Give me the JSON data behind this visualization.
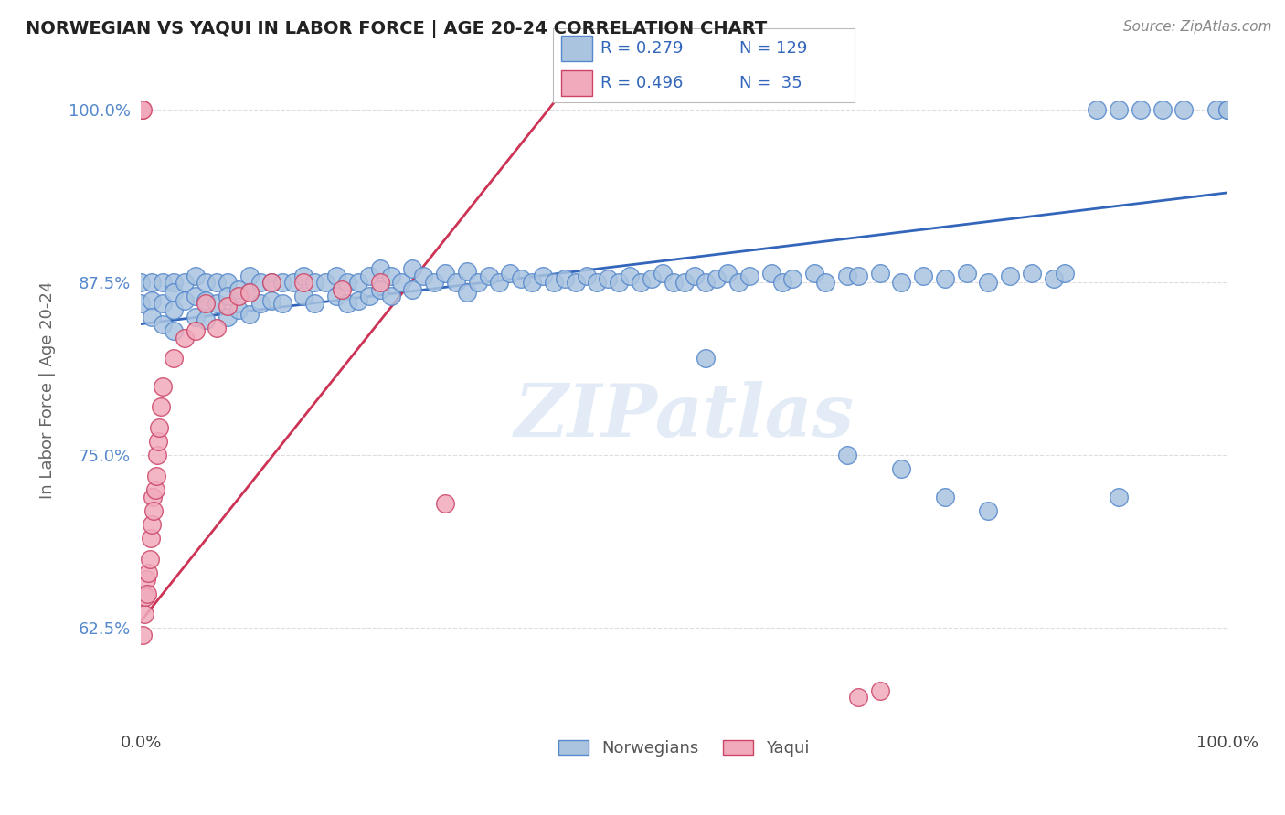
{
  "title": "NORWEGIAN VS YAQUI IN LABOR FORCE | AGE 20-24 CORRELATION CHART",
  "source_text": "Source: ZipAtlas.com",
  "ylabel": "In Labor Force | Age 20-24",
  "xlim": [
    0.0,
    1.0
  ],
  "ylim": [
    0.555,
    1.04
  ],
  "yticks": [
    0.625,
    0.75,
    0.875,
    1.0
  ],
  "ytick_labels": [
    "62.5%",
    "75.0%",
    "87.5%",
    "100.0%"
  ],
  "watermark": "ZIPatlas",
  "legend_norwegian_R": 0.279,
  "legend_norwegian_N": 129,
  "legend_yaqui_R": 0.496,
  "legend_yaqui_N": 35,
  "norwegian_color": "#aac4e0",
  "norwegian_edge_color": "#5588cc",
  "yaqui_color": "#f0aabb",
  "yaqui_edge_color": "#cc4466",
  "background_color": "#ffffff",
  "grid_color": "#dddddd",
  "title_color": "#222222",
  "source_color": "#888888",
  "tick_color": "#5588cc",
  "ylabel_color": "#666666",
  "nor_line_color": "#3366bb",
  "yaq_line_color": "#cc3355",
  "nor_line_x0": 0.0,
  "nor_line_y0": 0.845,
  "nor_line_x1": 1.0,
  "nor_line_y1": 0.94,
  "yaq_line_x0": 0.0,
  "yaq_line_y0": 0.63,
  "yaq_line_x1": 0.38,
  "yaq_line_y1": 1.005
}
